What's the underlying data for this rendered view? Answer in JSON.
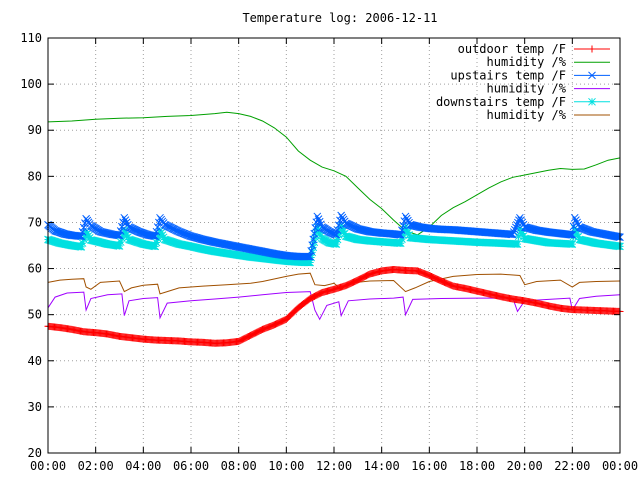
{
  "chart_data": {
    "type": "line",
    "title": "Temperature log: 2006-12-11",
    "xlabel": "",
    "ylabel": "",
    "xlim": [
      "00:00",
      "24:00"
    ],
    "ylim": [
      20,
      110
    ],
    "yticks": [
      20,
      30,
      40,
      50,
      60,
      70,
      80,
      90,
      100,
      110
    ],
    "xticks": [
      "00:00",
      "02:00",
      "04:00",
      "06:00",
      "08:00",
      "10:00",
      "12:00",
      "14:00",
      "16:00",
      "18:00",
      "20:00",
      "22:00",
      "00:00"
    ],
    "grid": true,
    "legend_position": "top-right",
    "series": [
      {
        "name": "outdoor temp /F",
        "color": "#ff0000",
        "marker": "plus",
        "points": [
          [
            0,
            47.5
          ],
          [
            0.5,
            47.2
          ],
          [
            1,
            46.8
          ],
          [
            1.5,
            46.3
          ],
          [
            2,
            46.1
          ],
          [
            2.5,
            45.8
          ],
          [
            3,
            45.3
          ],
          [
            3.5,
            45.0
          ],
          [
            4,
            44.7
          ],
          [
            4.5,
            44.5
          ],
          [
            5,
            44.4
          ],
          [
            5.5,
            44.3
          ],
          [
            6,
            44.1
          ],
          [
            6.5,
            44.0
          ],
          [
            7,
            43.8
          ],
          [
            7.5,
            43.9
          ],
          [
            8,
            44.2
          ],
          [
            8.5,
            45.5
          ],
          [
            9,
            46.8
          ],
          [
            9.5,
            47.8
          ],
          [
            10,
            49.0
          ],
          [
            10.5,
            51.5
          ],
          [
            11,
            53.5
          ],
          [
            11.5,
            54.8
          ],
          [
            12,
            55.5
          ],
          [
            12.5,
            56.3
          ],
          [
            13,
            57.5
          ],
          [
            13.5,
            58.8
          ],
          [
            14,
            59.5
          ],
          [
            14.5,
            59.8
          ],
          [
            15,
            59.6
          ],
          [
            15.5,
            59.5
          ],
          [
            16,
            58.5
          ],
          [
            16.5,
            57.3
          ],
          [
            17,
            56.2
          ],
          [
            17.5,
            55.7
          ],
          [
            18,
            55.1
          ],
          [
            18.5,
            54.5
          ],
          [
            19,
            53.9
          ],
          [
            19.5,
            53.4
          ],
          [
            20,
            53.0
          ],
          [
            20.5,
            52.5
          ],
          [
            21,
            51.9
          ],
          [
            21.5,
            51.4
          ],
          [
            22,
            51.1
          ],
          [
            22.5,
            51.0
          ],
          [
            23,
            50.9
          ],
          [
            23.5,
            50.8
          ],
          [
            24,
            50.7
          ]
        ]
      },
      {
        "name": "humidity /%",
        "color": "#00a000",
        "marker": "none",
        "points": [
          [
            0,
            91.8
          ],
          [
            1,
            92.0
          ],
          [
            2,
            92.4
          ],
          [
            3,
            92.6
          ],
          [
            4,
            92.7
          ],
          [
            5,
            93.0
          ],
          [
            6,
            93.2
          ],
          [
            7,
            93.6
          ],
          [
            7.5,
            93.9
          ],
          [
            8,
            93.6
          ],
          [
            8.5,
            93.0
          ],
          [
            9,
            92.0
          ],
          [
            9.5,
            90.5
          ],
          [
            10,
            88.5
          ],
          [
            10.5,
            85.5
          ],
          [
            11,
            83.5
          ],
          [
            11.5,
            82.0
          ],
          [
            12,
            81.2
          ],
          [
            12.5,
            80.0
          ],
          [
            13,
            77.5
          ],
          [
            13.5,
            75.0
          ],
          [
            14,
            73.0
          ],
          [
            14.5,
            70.5
          ],
          [
            15,
            68.2
          ],
          [
            15.5,
            67.3
          ],
          [
            16,
            69.0
          ],
          [
            16.5,
            71.5
          ],
          [
            17,
            73.2
          ],
          [
            17.5,
            74.5
          ],
          [
            18,
            76.0
          ],
          [
            18.5,
            77.5
          ],
          [
            19,
            78.8
          ],
          [
            19.5,
            79.8
          ],
          [
            20,
            80.3
          ],
          [
            20.5,
            80.8
          ],
          [
            21,
            81.3
          ],
          [
            21.5,
            81.7
          ],
          [
            22,
            81.5
          ],
          [
            22.5,
            81.6
          ],
          [
            23,
            82.5
          ],
          [
            23.5,
            83.5
          ],
          [
            24,
            84.0
          ]
        ]
      },
      {
        "name": "upstairs temp /F",
        "color": "#0060ff",
        "marker": "x",
        "points": [
          [
            0,
            69.5
          ],
          [
            0.3,
            68.2
          ],
          [
            0.7,
            67.5
          ],
          [
            1.0,
            67.2
          ],
          [
            1.4,
            67.0
          ],
          [
            1.6,
            70.8
          ],
          [
            1.8,
            69.3
          ],
          [
            2.2,
            68.0
          ],
          [
            2.7,
            67.4
          ],
          [
            3.0,
            67.2
          ],
          [
            3.2,
            71.0
          ],
          [
            3.4,
            69.0
          ],
          [
            3.8,
            68.0
          ],
          [
            4.2,
            67.3
          ],
          [
            4.5,
            67.0
          ],
          [
            4.7,
            71.0
          ],
          [
            4.9,
            69.5
          ],
          [
            5.5,
            68.0
          ],
          [
            6.0,
            67.0
          ],
          [
            6.5,
            66.3
          ],
          [
            7.0,
            65.7
          ],
          [
            7.5,
            65.2
          ],
          [
            8.0,
            64.7
          ],
          [
            8.5,
            64.2
          ],
          [
            9.0,
            63.7
          ],
          [
            9.5,
            63.2
          ],
          [
            10.0,
            62.8
          ],
          [
            10.5,
            62.6
          ],
          [
            11.0,
            62.6
          ],
          [
            11.3,
            71.3
          ],
          [
            11.5,
            69.0
          ],
          [
            11.8,
            68.0
          ],
          [
            12.1,
            67.3
          ],
          [
            12.3,
            71.5
          ],
          [
            12.5,
            69.8
          ],
          [
            13.0,
            68.6
          ],
          [
            13.5,
            68.0
          ],
          [
            14.0,
            67.7
          ],
          [
            14.5,
            67.5
          ],
          [
            14.8,
            67.3
          ],
          [
            15.0,
            71.3
          ],
          [
            15.2,
            69.5
          ],
          [
            15.6,
            69.0
          ],
          [
            16.0,
            68.7
          ],
          [
            16.5,
            68.5
          ],
          [
            17.0,
            68.4
          ],
          [
            17.5,
            68.2
          ],
          [
            18.0,
            68.0
          ],
          [
            18.5,
            67.8
          ],
          [
            19.0,
            67.6
          ],
          [
            19.5,
            67.4
          ],
          [
            19.8,
            71.0
          ],
          [
            20.0,
            69.0
          ],
          [
            20.5,
            68.3
          ],
          [
            21.0,
            67.9
          ],
          [
            21.5,
            67.6
          ],
          [
            22.0,
            67.3
          ],
          [
            22.1,
            71.0
          ],
          [
            22.3,
            69.0
          ],
          [
            22.8,
            68.0
          ],
          [
            23.3,
            67.5
          ],
          [
            23.7,
            67.1
          ],
          [
            24.0,
            66.8
          ]
        ]
      },
      {
        "name": "humidity /%",
        "color": "#a000ff",
        "marker": "none",
        "points": [
          [
            0,
            51.5
          ],
          [
            0.3,
            53.8
          ],
          [
            0.8,
            54.7
          ],
          [
            1.5,
            54.9
          ],
          [
            1.6,
            51.0
          ],
          [
            1.8,
            53.5
          ],
          [
            2.5,
            54.3
          ],
          [
            3.1,
            54.5
          ],
          [
            3.2,
            49.8
          ],
          [
            3.4,
            53.0
          ],
          [
            4.0,
            53.5
          ],
          [
            4.6,
            53.7
          ],
          [
            4.7,
            49.3
          ],
          [
            5.0,
            52.5
          ],
          [
            6.0,
            53.0
          ],
          [
            7.0,
            53.4
          ],
          [
            8.0,
            53.8
          ],
          [
            9.0,
            54.3
          ],
          [
            10.0,
            54.8
          ],
          [
            11.0,
            55.0
          ],
          [
            11.2,
            51.0
          ],
          [
            11.4,
            49.0
          ],
          [
            11.7,
            52.0
          ],
          [
            12.2,
            52.8
          ],
          [
            12.3,
            49.8
          ],
          [
            12.6,
            53.0
          ],
          [
            13.5,
            53.4
          ],
          [
            14.5,
            53.6
          ],
          [
            14.9,
            53.8
          ],
          [
            15.0,
            50.0
          ],
          [
            15.3,
            53.3
          ],
          [
            16.5,
            53.5
          ],
          [
            18.0,
            53.6
          ],
          [
            19.5,
            53.6
          ],
          [
            19.7,
            50.7
          ],
          [
            20.0,
            53.0
          ],
          [
            21.0,
            53.3
          ],
          [
            21.9,
            53.6
          ],
          [
            22.0,
            51.0
          ],
          [
            22.3,
            53.5
          ],
          [
            23.0,
            54.0
          ],
          [
            24.0,
            54.3
          ]
        ]
      },
      {
        "name": "downstairs temp /F",
        "color": "#00e0e0",
        "marker": "star",
        "points": [
          [
            0,
            66.3
          ],
          [
            0.5,
            65.5
          ],
          [
            1.0,
            65.0
          ],
          [
            1.4,
            64.7
          ],
          [
            1.6,
            68.0
          ],
          [
            1.8,
            66.2
          ],
          [
            2.5,
            65.3
          ],
          [
            3.0,
            64.9
          ],
          [
            3.2,
            68.3
          ],
          [
            3.4,
            66.3
          ],
          [
            4.0,
            65.3
          ],
          [
            4.5,
            64.8
          ],
          [
            4.7,
            68.2
          ],
          [
            4.9,
            66.3
          ],
          [
            5.5,
            65.3
          ],
          [
            6.0,
            64.8
          ],
          [
            6.5,
            64.2
          ],
          [
            7.0,
            63.7
          ],
          [
            7.5,
            63.3
          ],
          [
            8.0,
            62.9
          ],
          [
            8.5,
            62.5
          ],
          [
            9.0,
            62.2
          ],
          [
            9.5,
            61.9
          ],
          [
            10.0,
            61.6
          ],
          [
            10.5,
            61.4
          ],
          [
            11.0,
            61.3
          ],
          [
            11.3,
            69.0
          ],
          [
            11.5,
            66.5
          ],
          [
            11.8,
            65.6
          ],
          [
            12.1,
            65.3
          ],
          [
            12.3,
            69.3
          ],
          [
            12.5,
            67.0
          ],
          [
            13.0,
            66.3
          ],
          [
            13.5,
            66.0
          ],
          [
            14.0,
            65.8
          ],
          [
            14.8,
            65.5
          ],
          [
            15.0,
            69.0
          ],
          [
            15.2,
            66.7
          ],
          [
            16.0,
            66.3
          ],
          [
            17.0,
            66.0
          ],
          [
            18.0,
            65.7
          ],
          [
            19.0,
            65.5
          ],
          [
            19.7,
            65.3
          ],
          [
            19.8,
            68.7
          ],
          [
            20.0,
            66.5
          ],
          [
            21.0,
            65.6
          ],
          [
            22.0,
            65.3
          ],
          [
            22.1,
            68.7
          ],
          [
            22.3,
            66.3
          ],
          [
            23.0,
            65.5
          ],
          [
            24.0,
            64.8
          ]
        ]
      },
      {
        "name": "humidity /%",
        "color": "#a05000",
        "marker": "none",
        "points": [
          [
            0,
            57.0
          ],
          [
            0.5,
            57.5
          ],
          [
            1.0,
            57.7
          ],
          [
            1.5,
            57.8
          ],
          [
            1.6,
            56.0
          ],
          [
            1.8,
            55.5
          ],
          [
            2.2,
            57.0
          ],
          [
            3.0,
            57.3
          ],
          [
            3.2,
            55.0
          ],
          [
            3.5,
            55.8
          ],
          [
            4.0,
            56.4
          ],
          [
            4.6,
            56.6
          ],
          [
            4.7,
            54.5
          ],
          [
            5.0,
            55.0
          ],
          [
            5.5,
            55.8
          ],
          [
            6.5,
            56.2
          ],
          [
            7.5,
            56.5
          ],
          [
            8.5,
            56.8
          ],
          [
            9.0,
            57.2
          ],
          [
            10.0,
            58.3
          ],
          [
            10.5,
            58.8
          ],
          [
            11.0,
            59.0
          ],
          [
            11.2,
            56.5
          ],
          [
            11.6,
            56.3
          ],
          [
            12.0,
            56.8
          ],
          [
            12.3,
            55.5
          ],
          [
            12.6,
            56.8
          ],
          [
            13.5,
            57.3
          ],
          [
            14.5,
            57.4
          ],
          [
            15.0,
            55.0
          ],
          [
            15.4,
            55.8
          ],
          [
            16.0,
            57.2
          ],
          [
            17.0,
            58.3
          ],
          [
            18.0,
            58.7
          ],
          [
            19.0,
            58.8
          ],
          [
            19.8,
            58.5
          ],
          [
            20.0,
            56.5
          ],
          [
            20.5,
            57.2
          ],
          [
            21.5,
            57.5
          ],
          [
            22.0,
            56.0
          ],
          [
            22.3,
            57.0
          ],
          [
            23.0,
            57.2
          ],
          [
            24.0,
            57.3
          ]
        ]
      }
    ]
  }
}
